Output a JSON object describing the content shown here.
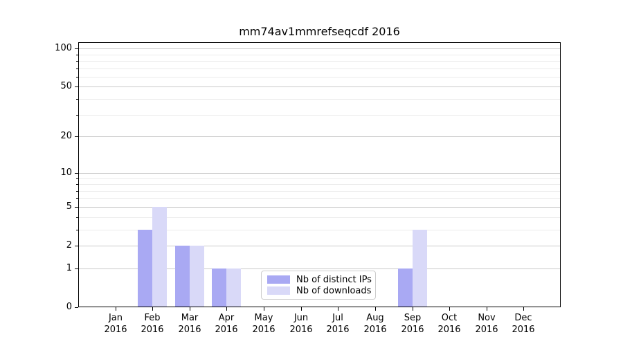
{
  "chart_data": {
    "type": "bar",
    "title": "mm74av1mmrefseqcdf 2016",
    "categories": [
      "Jan",
      "Feb",
      "Mar",
      "Apr",
      "May",
      "Jun",
      "Jul",
      "Aug",
      "Sep",
      "Oct",
      "Nov",
      "Dec"
    ],
    "category_sublabel": "2016",
    "series": [
      {
        "name": "Nb of distinct IPs",
        "color": "#a9a9f3",
        "values": [
          0,
          3,
          2,
          1,
          0,
          0,
          0,
          0,
          1,
          0,
          0,
          0
        ]
      },
      {
        "name": "Nb of downloads",
        "color": "#d9d9f8",
        "values": [
          0,
          5,
          2,
          1,
          0,
          0,
          0,
          0,
          3,
          0,
          0,
          0
        ]
      }
    ],
    "yscale": "log1p",
    "ylim": [
      0,
      112
    ],
    "yticks": [
      0,
      1,
      2,
      5,
      10,
      20,
      50,
      100
    ],
    "minor_yticks": [
      3,
      4,
      6,
      7,
      8,
      9,
      30,
      40,
      60,
      70,
      80,
      90
    ],
    "xlabel": "",
    "ylabel": "",
    "grid": "on",
    "legend_position": "lower center",
    "colors": {
      "grid_major": "#c9c9c9",
      "grid_minor": "#ebebeb",
      "axis": "#000000",
      "background": "#ffffff"
    }
  }
}
